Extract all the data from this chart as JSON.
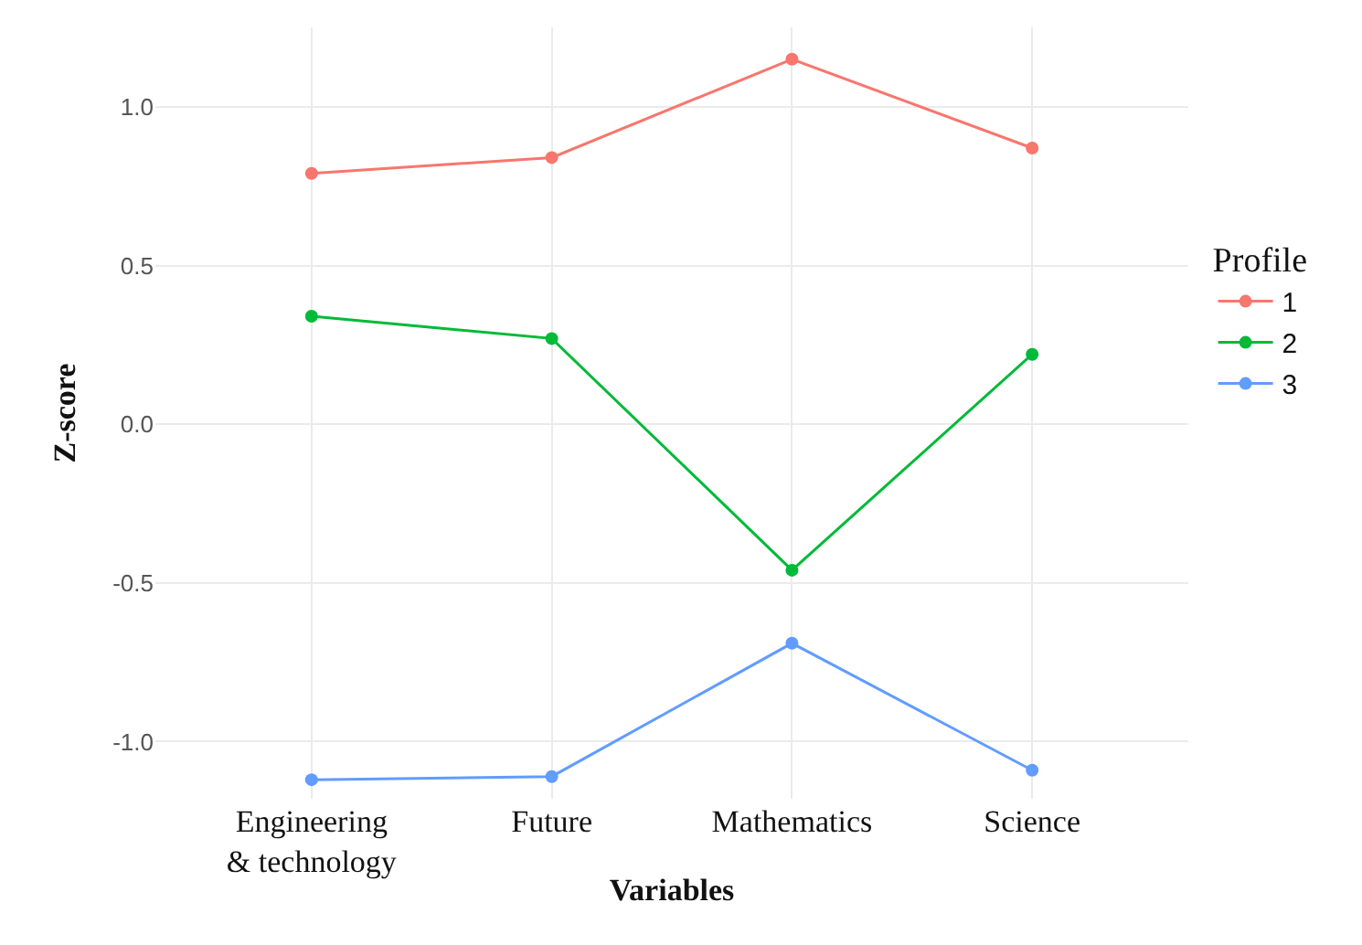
{
  "chart_data": {
    "type": "line",
    "xlabel": "Variables",
    "ylabel": "Z-score",
    "legend_title": "Profile",
    "categories": [
      "Engineering\n& technology",
      "Future",
      "Mathematics",
      "Science"
    ],
    "series": [
      {
        "name": "1",
        "color": "#f8766d",
        "values": [
          0.79,
          0.84,
          1.15,
          0.87
        ]
      },
      {
        "name": "2",
        "color": "#00ba38",
        "values": [
          0.34,
          0.27,
          -0.46,
          0.22
        ]
      },
      {
        "name": "3",
        "color": "#619cff",
        "values": [
          -1.12,
          -1.11,
          -0.69,
          -1.09
        ]
      }
    ],
    "ylim": [
      -1.18,
      1.25
    ],
    "yticks": [
      {
        "value": -1,
        "label": "-1.0"
      },
      -0.5,
      {
        "value": 0,
        "label": "0.0"
      },
      0.5,
      {
        "value": 1,
        "label": "1.0"
      }
    ],
    "grid": true,
    "legend": "right",
    "marker": "circle",
    "line_style": "solid"
  }
}
